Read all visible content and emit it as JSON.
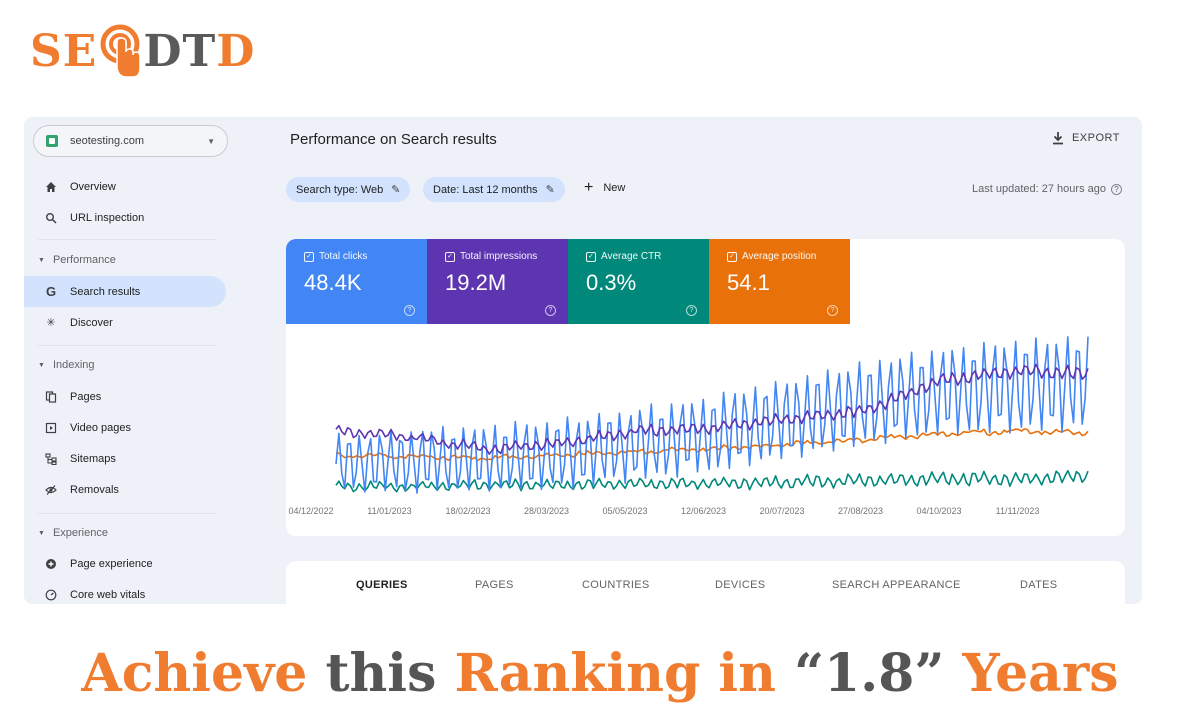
{
  "logo": {
    "part1": "SE",
    "part2": "DT",
    "part3": "D",
    "mark_icon": "pointer-hand-icon"
  },
  "sidebar": {
    "property": "seotesting.com",
    "top_items": [
      {
        "label": "Overview",
        "icon": "home-icon"
      },
      {
        "label": "URL inspection",
        "icon": "search-icon"
      }
    ],
    "sections": [
      {
        "title": "Performance",
        "items": [
          {
            "label": "Search results",
            "icon": "google-g-icon",
            "active": true
          },
          {
            "label": "Discover",
            "icon": "asterisk-icon"
          }
        ]
      },
      {
        "title": "Indexing",
        "items": [
          {
            "label": "Pages",
            "icon": "pages-icon"
          },
          {
            "label": "Video pages",
            "icon": "video-pages-icon"
          },
          {
            "label": "Sitemaps",
            "icon": "sitemap-icon"
          },
          {
            "label": "Removals",
            "icon": "removal-icon"
          }
        ]
      },
      {
        "title": "Experience",
        "items": [
          {
            "label": "Page experience",
            "icon": "plus-circle-icon"
          },
          {
            "label": "Core web vitals",
            "icon": "gauge-icon"
          }
        ]
      }
    ]
  },
  "header": {
    "title": "Performance on Search results",
    "export_label": "EXPORT",
    "filters": [
      "Search type: Web",
      "Date: Last 12 months"
    ],
    "new_label": "New",
    "last_updated": "Last updated: 27 hours ago"
  },
  "metrics": [
    {
      "label": "Total clicks",
      "value": "48.4K",
      "color": "#4285f4"
    },
    {
      "label": "Total impressions",
      "value": "19.2M",
      "color": "#5e35b1"
    },
    {
      "label": "Average CTR",
      "value": "0.3%",
      "color": "#00897b"
    },
    {
      "label": "Average position",
      "value": "54.1",
      "color": "#e8710a"
    }
  ],
  "chart_data": {
    "type": "line",
    "x_ticks": [
      "04/12/2022",
      "11/01/2023",
      "18/02/2023",
      "28/03/2023",
      "05/05/2023",
      "12/06/2023",
      "20/07/2023",
      "27/08/2023",
      "04/10/2023",
      "11/11/2023"
    ],
    "series": [
      {
        "name": "Total clicks",
        "color": "#4285f4",
        "trend": [
          0.2,
          0.22,
          0.24,
          0.27,
          0.33,
          0.4,
          0.5,
          0.6,
          0.68,
          0.72,
          0.74
        ],
        "weekly_amplitude": 0.32
      },
      {
        "name": "Total impressions",
        "color": "#5e35b1",
        "trend": [
          0.42,
          0.38,
          0.3,
          0.34,
          0.42,
          0.44,
          0.5,
          0.55,
          0.75,
          0.82,
          0.8
        ],
        "weekly_amplitude": 0.04
      },
      {
        "name": "Average CTR",
        "color": "#00897b",
        "trend": [
          0.05,
          0.05,
          0.06,
          0.06,
          0.07,
          0.07,
          0.08,
          0.09,
          0.1,
          0.1,
          0.12
        ],
        "weekly_amplitude": 0.04
      },
      {
        "name": "Average position",
        "color": "#e8710a",
        "trend": [
          0.26,
          0.25,
          0.24,
          0.26,
          0.28,
          0.3,
          0.33,
          0.36,
          0.4,
          0.42,
          0.41
        ],
        "weekly_amplitude": 0.01
      }
    ]
  },
  "tabs": [
    "QUERIES",
    "PAGES",
    "COUNTRIES",
    "DEVICES",
    "SEARCH APPEARANCE",
    "DATES"
  ],
  "headline": {
    "w1": "Achieve",
    "w2": "this",
    "w3": "Ranking in",
    "w4": "“1.8”",
    "w5": "Years"
  }
}
